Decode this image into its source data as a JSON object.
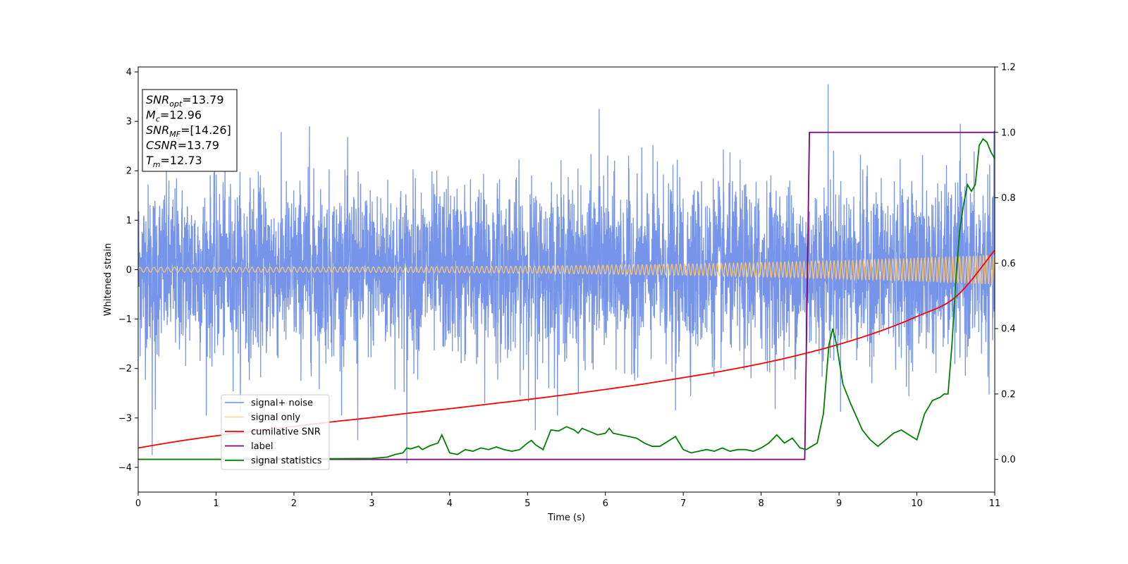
{
  "chart_data": {
    "type": "line",
    "xlabel": "Time (s)",
    "ylabel": "Whitened strain",
    "xlim": [
      0,
      11
    ],
    "ylim": [
      -4.5,
      4.1
    ],
    "y2lim": [
      -0.1,
      1.2
    ],
    "x_ticks": [
      "0",
      "1",
      "2",
      "3",
      "4",
      "5",
      "6",
      "7",
      "8",
      "9",
      "10",
      "11"
    ],
    "y_ticks": [
      "−4",
      "−3",
      "−2",
      "−1",
      "0",
      "1",
      "2",
      "3",
      "4"
    ],
    "y2_ticks": [
      "0.0",
      "0.2",
      "0.4",
      "0.6",
      "0.8",
      "1.0",
      "1.2"
    ],
    "legend_position": "lower-left",
    "info_box": {
      "lines": [
        {
          "name": "SNR",
          "sub": "opt",
          "value": "=13.79"
        },
        {
          "name": "M",
          "sub": "c",
          "value": "=12.96"
        },
        {
          "name": "SNR",
          "sub": "MF",
          "value": "=[14.26]"
        },
        {
          "name": "CSNR",
          "sub": "",
          "value": "=13.79"
        },
        {
          "name": "T",
          "sub": "m",
          "value": "=12.73"
        }
      ]
    },
    "series": [
      {
        "name": "signal+ noise",
        "color": "#6f8ee8",
        "axis": "left",
        "description_kind": "noise",
        "std": 1.0,
        "peaks": [
          [
            0.18,
            -3.75
          ],
          [
            0.22,
            -2.83
          ],
          [
            1.38,
            -1.6
          ],
          [
            2.2,
            2.9
          ],
          [
            2.82,
            -3.45
          ],
          [
            3.45,
            -3.92
          ],
          [
            4.45,
            -2.7
          ],
          [
            5.1,
            -3.25
          ],
          [
            5.92,
            3.25
          ],
          [
            6.9,
            -2.85
          ],
          [
            8.86,
            3.75
          ],
          [
            10.55,
            2.2
          ]
        ]
      },
      {
        "name": "signal only",
        "color": "#ffc970",
        "axis": "left",
        "amp_start": 0.05,
        "amp_end": 0.3
      },
      {
        "name": "cumilative SNR",
        "color": "#ff0000",
        "axis": "right",
        "x": [
          0,
          0.5,
          1,
          1.5,
          2,
          2.5,
          3,
          3.5,
          4,
          4.5,
          5,
          5.5,
          6,
          6.5,
          7,
          7.5,
          8,
          8.5,
          9,
          9.5,
          10,
          10.5,
          11
        ],
        "y": [
          0.035,
          0.055,
          0.072,
          0.087,
          0.101,
          0.115,
          0.128,
          0.142,
          0.155,
          0.169,
          0.183,
          0.198,
          0.214,
          0.231,
          0.25,
          0.27,
          0.293,
          0.32,
          0.352,
          0.39,
          0.437,
          0.497,
          0.64
        ]
      },
      {
        "name": "label",
        "color": "#800080",
        "axis": "right",
        "x": [
          0,
          8.56,
          8.62,
          11
        ],
        "y": [
          0.0,
          0.0,
          1.0,
          1.0
        ]
      },
      {
        "name": "signal statistics",
        "color": "#008000",
        "axis": "right",
        "x": [
          0,
          1,
          2,
          2.5,
          3,
          3.2,
          3.3,
          3.4,
          3.45,
          3.5,
          3.6,
          3.65,
          3.75,
          3.85,
          3.9,
          4,
          4.1,
          4.2,
          4.3,
          4.4,
          4.5,
          4.6,
          4.7,
          4.8,
          4.9,
          5,
          5.05,
          5.1,
          5.2,
          5.3,
          5.4,
          5.5,
          5.6,
          5.65,
          5.7,
          5.8,
          5.9,
          6,
          6.05,
          6.1,
          6.2,
          6.3,
          6.4,
          6.5,
          6.6,
          6.7,
          6.8,
          6.9,
          7,
          7.1,
          7.2,
          7.3,
          7.4,
          7.5,
          7.6,
          7.7,
          7.8,
          7.9,
          8,
          8.1,
          8.2,
          8.3,
          8.4,
          8.5,
          8.58,
          8.65,
          8.72,
          8.8,
          8.87,
          8.92,
          8.97,
          9.05,
          9.15,
          9.3,
          9.4,
          9.5,
          9.6,
          9.7,
          9.8,
          9.9,
          10,
          10.05,
          10.1,
          10.15,
          10.2,
          10.3,
          10.35,
          10.4,
          10.45,
          10.5,
          10.55,
          10.6,
          10.65,
          10.7,
          10.75,
          10.8,
          10.85,
          10.9,
          10.95,
          11
        ],
        "y": [
          0.0,
          0.0,
          0.003,
          0.002,
          0.003,
          0.007,
          0.015,
          0.02,
          0.035,
          0.032,
          0.04,
          0.03,
          0.042,
          0.05,
          0.075,
          0.02,
          0.015,
          0.03,
          0.025,
          0.035,
          0.03,
          0.038,
          0.03,
          0.025,
          0.03,
          0.05,
          0.058,
          0.045,
          0.03,
          0.09,
          0.087,
          0.1,
          0.09,
          0.08,
          0.095,
          0.085,
          0.075,
          0.08,
          0.095,
          0.08,
          0.075,
          0.07,
          0.065,
          0.05,
          0.04,
          0.04,
          0.055,
          0.07,
          0.03,
          0.02,
          0.025,
          0.03,
          0.025,
          0.035,
          0.025,
          0.03,
          0.03,
          0.025,
          0.035,
          0.05,
          0.075,
          0.05,
          0.065,
          0.035,
          0.03,
          0.04,
          0.05,
          0.14,
          0.35,
          0.4,
          0.35,
          0.23,
          0.17,
          0.09,
          0.06,
          0.04,
          0.06,
          0.08,
          0.09,
          0.075,
          0.06,
          0.1,
          0.14,
          0.16,
          0.18,
          0.19,
          0.2,
          0.2,
          0.35,
          0.55,
          0.7,
          0.78,
          0.84,
          0.82,
          0.84,
          0.96,
          0.98,
          0.97,
          0.94,
          0.92
        ]
      }
    ]
  }
}
